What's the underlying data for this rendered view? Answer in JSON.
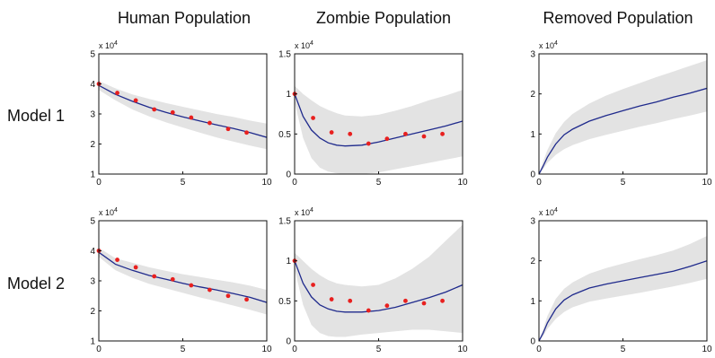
{
  "columns": [
    "Human Population",
    "Zombie Population",
    "Removed Population"
  ],
  "rows": [
    "Model 1",
    "Model 2"
  ],
  "colors": {
    "band": "#e3e3e3",
    "mean_line": "#1f2a8c",
    "observations": "#e8201f",
    "axes": "#111111"
  },
  "chart_data": [
    {
      "type": "line",
      "row": "Model 1",
      "column": "Human Population",
      "multiplier_label": "x 10^4",
      "multiplier_base": "x 10",
      "multiplier_exp": "4",
      "xlim": [
        0,
        10
      ],
      "ylim": [
        1,
        5
      ],
      "xticks": [
        0,
        5,
        10
      ],
      "yticks": [
        1,
        2,
        3,
        4,
        5
      ],
      "x": [
        0,
        1,
        2,
        3,
        4,
        5,
        6,
        7,
        8,
        9,
        10
      ],
      "mean": [
        3.95,
        3.65,
        3.42,
        3.22,
        3.05,
        2.9,
        2.77,
        2.64,
        2.52,
        2.38,
        2.22
      ],
      "band_lower": [
        3.8,
        3.45,
        3.15,
        2.92,
        2.72,
        2.55,
        2.38,
        2.22,
        2.08,
        1.95,
        1.83
      ],
      "band_upper": [
        4.1,
        3.85,
        3.65,
        3.5,
        3.36,
        3.24,
        3.12,
        3.0,
        2.9,
        2.78,
        2.68
      ],
      "observations": {
        "x": [
          0,
          1.1,
          2.2,
          3.3,
          4.4,
          5.5,
          6.6,
          7.7,
          8.8
        ],
        "y": [
          4.0,
          3.7,
          3.45,
          3.15,
          3.05,
          2.88,
          2.7,
          2.5,
          2.38
        ]
      }
    },
    {
      "type": "line",
      "row": "Model 1",
      "column": "Zombie Population",
      "multiplier_label": "x 10^4",
      "multiplier_base": "x 10",
      "multiplier_exp": "4",
      "xlim": [
        0,
        10
      ],
      "ylim": [
        0,
        1.5
      ],
      "xticks": [
        0,
        5,
        10
      ],
      "yticks": [
        0,
        0.5,
        1,
        1.5
      ],
      "x": [
        0,
        0.5,
        1,
        1.5,
        2,
        2.5,
        3,
        4,
        5,
        6,
        7,
        8,
        9,
        10
      ],
      "mean": [
        1.0,
        0.72,
        0.55,
        0.45,
        0.39,
        0.36,
        0.35,
        0.36,
        0.4,
        0.45,
        0.5,
        0.55,
        0.6,
        0.66
      ],
      "band_lower": [
        0.9,
        0.45,
        0.2,
        0.08,
        0.03,
        0.01,
        0.0,
        0.0,
        0.02,
        0.06,
        0.1,
        0.14,
        0.18,
        0.22
      ],
      "band_upper": [
        1.1,
        1.0,
        0.92,
        0.85,
        0.8,
        0.76,
        0.73,
        0.72,
        0.74,
        0.79,
        0.85,
        0.92,
        0.98,
        1.05
      ],
      "observations": {
        "x": [
          0,
          1.1,
          2.2,
          3.3,
          4.4,
          5.5,
          6.6,
          7.7,
          8.8
        ],
        "y": [
          1.0,
          0.7,
          0.52,
          0.5,
          0.38,
          0.44,
          0.5,
          0.47,
          0.5
        ]
      }
    },
    {
      "type": "line",
      "row": "Model 1",
      "column": "Removed Population",
      "multiplier_label": "x 10^4",
      "multiplier_base": "x 10",
      "multiplier_exp": "4",
      "xlim": [
        0,
        10
      ],
      "ylim": [
        0,
        3
      ],
      "xticks": [
        0,
        5,
        10
      ],
      "yticks": [
        0,
        1,
        2,
        3
      ],
      "x": [
        0,
        0.25,
        0.5,
        1,
        1.5,
        2,
        3,
        4,
        5,
        6,
        7,
        8,
        9,
        10
      ],
      "mean": [
        0.0,
        0.2,
        0.42,
        0.75,
        0.98,
        1.12,
        1.32,
        1.46,
        1.58,
        1.7,
        1.8,
        1.92,
        2.02,
        2.14
      ],
      "band_lower": [
        0.0,
        0.12,
        0.28,
        0.48,
        0.62,
        0.72,
        0.87,
        0.98,
        1.08,
        1.18,
        1.27,
        1.37,
        1.46,
        1.56
      ],
      "band_upper": [
        0.0,
        0.32,
        0.6,
        1.02,
        1.3,
        1.5,
        1.76,
        1.96,
        2.12,
        2.27,
        2.42,
        2.56,
        2.7,
        2.84
      ],
      "observations": {
        "x": [],
        "y": []
      }
    },
    {
      "type": "line",
      "row": "Model 2",
      "column": "Human Population",
      "multiplier_label": "x 10^4",
      "multiplier_base": "x 10",
      "multiplier_exp": "4",
      "xlim": [
        0,
        10
      ],
      "ylim": [
        1,
        5
      ],
      "xticks": [
        0,
        5,
        10
      ],
      "yticks": [
        1,
        2,
        3,
        4,
        5
      ],
      "x": [
        0,
        1,
        2,
        3,
        4,
        5,
        6,
        7,
        8,
        9,
        10
      ],
      "mean": [
        3.95,
        3.55,
        3.35,
        3.18,
        3.05,
        2.92,
        2.8,
        2.7,
        2.58,
        2.45,
        2.28
      ],
      "band_lower": [
        3.8,
        3.35,
        3.1,
        2.9,
        2.75,
        2.6,
        2.45,
        2.32,
        2.18,
        2.04,
        1.88
      ],
      "band_upper": [
        4.1,
        3.75,
        3.6,
        3.45,
        3.33,
        3.22,
        3.13,
        3.04,
        2.95,
        2.84,
        2.7
      ],
      "observations": {
        "x": [
          0,
          1.1,
          2.2,
          3.3,
          4.4,
          5.5,
          6.6,
          7.7,
          8.8
        ],
        "y": [
          4.0,
          3.7,
          3.45,
          3.15,
          3.05,
          2.85,
          2.7,
          2.5,
          2.38
        ]
      }
    },
    {
      "type": "line",
      "row": "Model 2",
      "column": "Zombie Population",
      "multiplier_label": "x 10^4",
      "multiplier_base": "x 10",
      "multiplier_exp": "4",
      "xlim": [
        0,
        10
      ],
      "ylim": [
        0,
        1.5
      ],
      "xticks": [
        0,
        5,
        10
      ],
      "yticks": [
        0,
        0.5,
        1,
        1.5
      ],
      "x": [
        0,
        0.5,
        1,
        1.5,
        2,
        2.5,
        3,
        4,
        5,
        6,
        7,
        8,
        9,
        10
      ],
      "mean": [
        1.0,
        0.72,
        0.55,
        0.45,
        0.4,
        0.37,
        0.36,
        0.36,
        0.38,
        0.42,
        0.48,
        0.54,
        0.61,
        0.7
      ],
      "band_lower": [
        0.9,
        0.45,
        0.2,
        0.1,
        0.06,
        0.05,
        0.05,
        0.08,
        0.1,
        0.12,
        0.14,
        0.14,
        0.12,
        0.1
      ],
      "band_upper": [
        1.1,
        1.0,
        0.9,
        0.82,
        0.76,
        0.72,
        0.7,
        0.68,
        0.7,
        0.78,
        0.9,
        1.05,
        1.25,
        1.45
      ],
      "observations": {
        "x": [
          0,
          1.1,
          2.2,
          3.3,
          4.4,
          5.5,
          6.6,
          7.7,
          8.8
        ],
        "y": [
          1.0,
          0.7,
          0.52,
          0.5,
          0.38,
          0.44,
          0.5,
          0.47,
          0.5
        ]
      }
    },
    {
      "type": "line",
      "row": "Model 2",
      "column": "Removed Population",
      "multiplier_label": "x 10^4",
      "multiplier_base": "x 10",
      "multiplier_exp": "4",
      "xlim": [
        0,
        10
      ],
      "ylim": [
        0,
        3
      ],
      "xticks": [
        0,
        5,
        10
      ],
      "yticks": [
        0,
        1,
        2,
        3
      ],
      "x": [
        0,
        0.25,
        0.5,
        1,
        1.5,
        2,
        3,
        4,
        5,
        6,
        7,
        8,
        9,
        10
      ],
      "mean": [
        0.0,
        0.2,
        0.45,
        0.8,
        1.02,
        1.15,
        1.32,
        1.42,
        1.5,
        1.58,
        1.66,
        1.74,
        1.86,
        2.0
      ],
      "band_lower": [
        0.0,
        0.12,
        0.3,
        0.55,
        0.72,
        0.84,
        0.98,
        1.06,
        1.13,
        1.2,
        1.28,
        1.36,
        1.45,
        1.55
      ],
      "band_upper": [
        0.0,
        0.3,
        0.62,
        1.05,
        1.3,
        1.46,
        1.68,
        1.82,
        1.93,
        2.04,
        2.14,
        2.26,
        2.42,
        2.62
      ],
      "observations": {
        "x": [],
        "y": []
      }
    }
  ]
}
